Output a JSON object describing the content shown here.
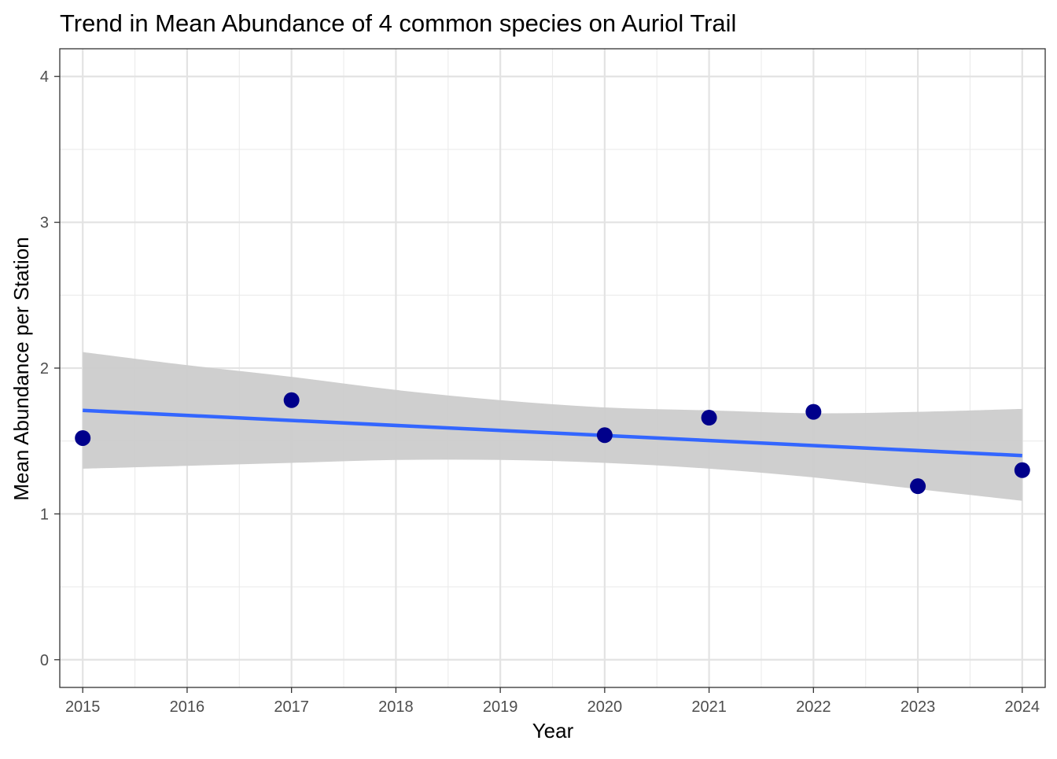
{
  "chart_data": {
    "type": "scatter",
    "title": "Trend in Mean Abundance of 4 common species on Auriol Trail",
    "xlabel": "Year",
    "ylabel": "Mean Abundance per Station",
    "xlim": [
      2014.78,
      2024.22
    ],
    "ylim": [
      -0.19,
      4.19
    ],
    "x_ticks": [
      2015,
      2016,
      2017,
      2018,
      2019,
      2020,
      2021,
      2022,
      2023,
      2024
    ],
    "x_tick_labels": [
      "2015",
      "2016",
      "2017",
      "2018",
      "2019",
      "2020",
      "2021",
      "2022",
      "2023",
      "2024"
    ],
    "y_ticks": [
      0,
      1,
      2,
      3,
      4
    ],
    "y_tick_labels": [
      "0",
      "1",
      "2",
      "3",
      "4"
    ],
    "grid": true,
    "legend": "none",
    "points": {
      "x": [
        2015,
        2017,
        2020,
        2021,
        2022,
        2023,
        2024
      ],
      "y": [
        1.52,
        1.78,
        1.54,
        1.66,
        1.7,
        1.19,
        1.3
      ],
      "color": "#00008B"
    },
    "trend_line": {
      "method": "linear fit",
      "x": [
        2015,
        2024
      ],
      "y": [
        1.71,
        1.4
      ],
      "color": "#3366FF"
    },
    "confidence_band": {
      "color": "#CCCCCC",
      "x": [
        2015,
        2016,
        2017,
        2018,
        2019,
        2020,
        2021,
        2022,
        2023,
        2024
      ],
      "lower": [
        1.31,
        1.33,
        1.35,
        1.37,
        1.37,
        1.35,
        1.31,
        1.25,
        1.17,
        1.09
      ],
      "upper": [
        2.11,
        2.02,
        1.94,
        1.85,
        1.78,
        1.73,
        1.71,
        1.69,
        1.7,
        1.72
      ]
    }
  }
}
